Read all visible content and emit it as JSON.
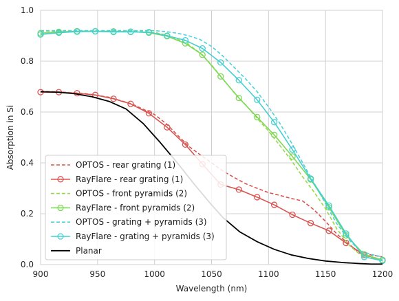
{
  "chart_data": {
    "type": "line",
    "title": "",
    "xlabel": "Wavelength (nm)",
    "ylabel": "Absorption in Si",
    "xlim": [
      900,
      1200
    ],
    "ylim": [
      0.0,
      1.0
    ],
    "xticks": [
      900,
      950,
      1000,
      1050,
      1100,
      1150,
      1200
    ],
    "xtick_labels": [
      "900",
      "950",
      "1000",
      "1050",
      "1100",
      "1150",
      "1200"
    ],
    "yticks": [
      0.0,
      0.2,
      0.4,
      0.6,
      0.8,
      1.0
    ],
    "ytick_labels": [
      "0.0",
      "0.2",
      "0.4",
      "0.6",
      "0.8",
      "1.0"
    ],
    "grid": true,
    "legend_position": "lower-left",
    "series": [
      {
        "name": "OPTOS - rear grating (1)",
        "color": "#d9534f",
        "style": "dashed",
        "marker": "none",
        "x": [
          900,
          920,
          940,
          960,
          980,
          1000,
          1010,
          1020,
          1030,
          1040,
          1050,
          1060,
          1070,
          1080,
          1090,
          1100,
          1110,
          1120,
          1130,
          1140,
          1150,
          1160,
          1170,
          1180,
          1190,
          1200
        ],
        "y": [
          0.682,
          0.678,
          0.672,
          0.658,
          0.632,
          0.59,
          0.555,
          0.51,
          0.465,
          0.432,
          0.4,
          0.368,
          0.342,
          0.318,
          0.3,
          0.283,
          0.272,
          0.26,
          0.25,
          0.215,
          0.17,
          0.12,
          0.083,
          0.045,
          0.038,
          0.03
        ]
      },
      {
        "name": "RayFlare - rear grating (1)",
        "color": "#d9534f",
        "style": "solid",
        "marker": "circle",
        "x": [
          900,
          916,
          932,
          948,
          964,
          979,
          995,
          1011,
          1027,
          1042,
          1058,
          1074,
          1090,
          1105,
          1121,
          1137,
          1153,
          1168,
          1184,
          1200
        ],
        "y": [
          0.678,
          0.678,
          0.674,
          0.667,
          0.652,
          0.632,
          0.595,
          0.54,
          0.472,
          0.395,
          0.315,
          0.295,
          0.265,
          0.235,
          0.196,
          0.163,
          0.133,
          0.085,
          0.038,
          0.018
        ]
      },
      {
        "name": "OPTOS - front pyramids (2)",
        "color": "#99d74d",
        "style": "dashed",
        "marker": "none",
        "x": [
          900,
          920,
          940,
          960,
          980,
          1000,
          1010,
          1020,
          1030,
          1040,
          1050,
          1060,
          1070,
          1080,
          1090,
          1100,
          1110,
          1120,
          1130,
          1140,
          1150,
          1160,
          1170,
          1180,
          1190,
          1200
        ],
        "y": [
          0.918,
          0.918,
          0.918,
          0.918,
          0.918,
          0.913,
          0.903,
          0.887,
          0.865,
          0.832,
          0.785,
          0.73,
          0.675,
          0.628,
          0.575,
          0.525,
          0.468,
          0.41,
          0.345,
          0.285,
          0.22,
          0.14,
          0.08,
          0.04,
          0.025,
          0.02
        ]
      },
      {
        "name": "RayFlare - front pyramids (2)",
        "color": "#7ed957",
        "style": "solid",
        "marker": "circle",
        "x": [
          900,
          916,
          932,
          948,
          964,
          979,
          995,
          1011,
          1027,
          1042,
          1058,
          1074,
          1090,
          1105,
          1121,
          1137,
          1153,
          1168,
          1184,
          1200
        ],
        "y": [
          0.91,
          0.915,
          0.918,
          0.918,
          0.917,
          0.916,
          0.912,
          0.898,
          0.87,
          0.825,
          0.74,
          0.655,
          0.58,
          0.51,
          0.425,
          0.335,
          0.225,
          0.115,
          0.04,
          0.018
        ]
      },
      {
        "name": "OPTOS - grating + pyramids (3)",
        "color": "#4fd1d9",
        "style": "dashed",
        "marker": "none",
        "x": [
          900,
          920,
          940,
          960,
          980,
          1000,
          1010,
          1020,
          1030,
          1040,
          1050,
          1060,
          1070,
          1080,
          1090,
          1100,
          1110,
          1120,
          1130,
          1140,
          1150,
          1160,
          1170,
          1180,
          1190,
          1200
        ],
        "y": [
          0.92,
          0.92,
          0.92,
          0.92,
          0.92,
          0.92,
          0.916,
          0.91,
          0.9,
          0.885,
          0.858,
          0.82,
          0.775,
          0.73,
          0.68,
          0.62,
          0.555,
          0.48,
          0.4,
          0.32,
          0.24,
          0.16,
          0.1,
          0.055,
          0.04,
          0.03
        ]
      },
      {
        "name": "RayFlare - grating + pyramids (3)",
        "color": "#45cfd1",
        "style": "solid",
        "marker": "circle",
        "x": [
          900,
          916,
          932,
          948,
          964,
          979,
          995,
          1011,
          1027,
          1042,
          1058,
          1074,
          1090,
          1105,
          1121,
          1137,
          1153,
          1168,
          1184,
          1200
        ],
        "y": [
          0.905,
          0.912,
          0.916,
          0.917,
          0.915,
          0.915,
          0.914,
          0.9,
          0.882,
          0.85,
          0.795,
          0.725,
          0.648,
          0.56,
          0.452,
          0.338,
          0.232,
          0.122,
          0.03,
          0.015
        ]
      },
      {
        "name": "Planar",
        "color": "#000000",
        "style": "solid",
        "marker": "none",
        "x": [
          900,
          915,
          930,
          945,
          960,
          975,
          990,
          1005,
          1020,
          1035,
          1050,
          1060,
          1075,
          1090,
          1105,
          1120,
          1135,
          1150,
          1165,
          1180,
          1190,
          1200
        ],
        "y": [
          0.68,
          0.678,
          0.672,
          0.66,
          0.642,
          0.612,
          0.555,
          0.48,
          0.4,
          0.315,
          0.235,
          0.185,
          0.128,
          0.09,
          0.06,
          0.038,
          0.024,
          0.014,
          0.008,
          0.004,
          0.002,
          0.002
        ]
      }
    ]
  }
}
